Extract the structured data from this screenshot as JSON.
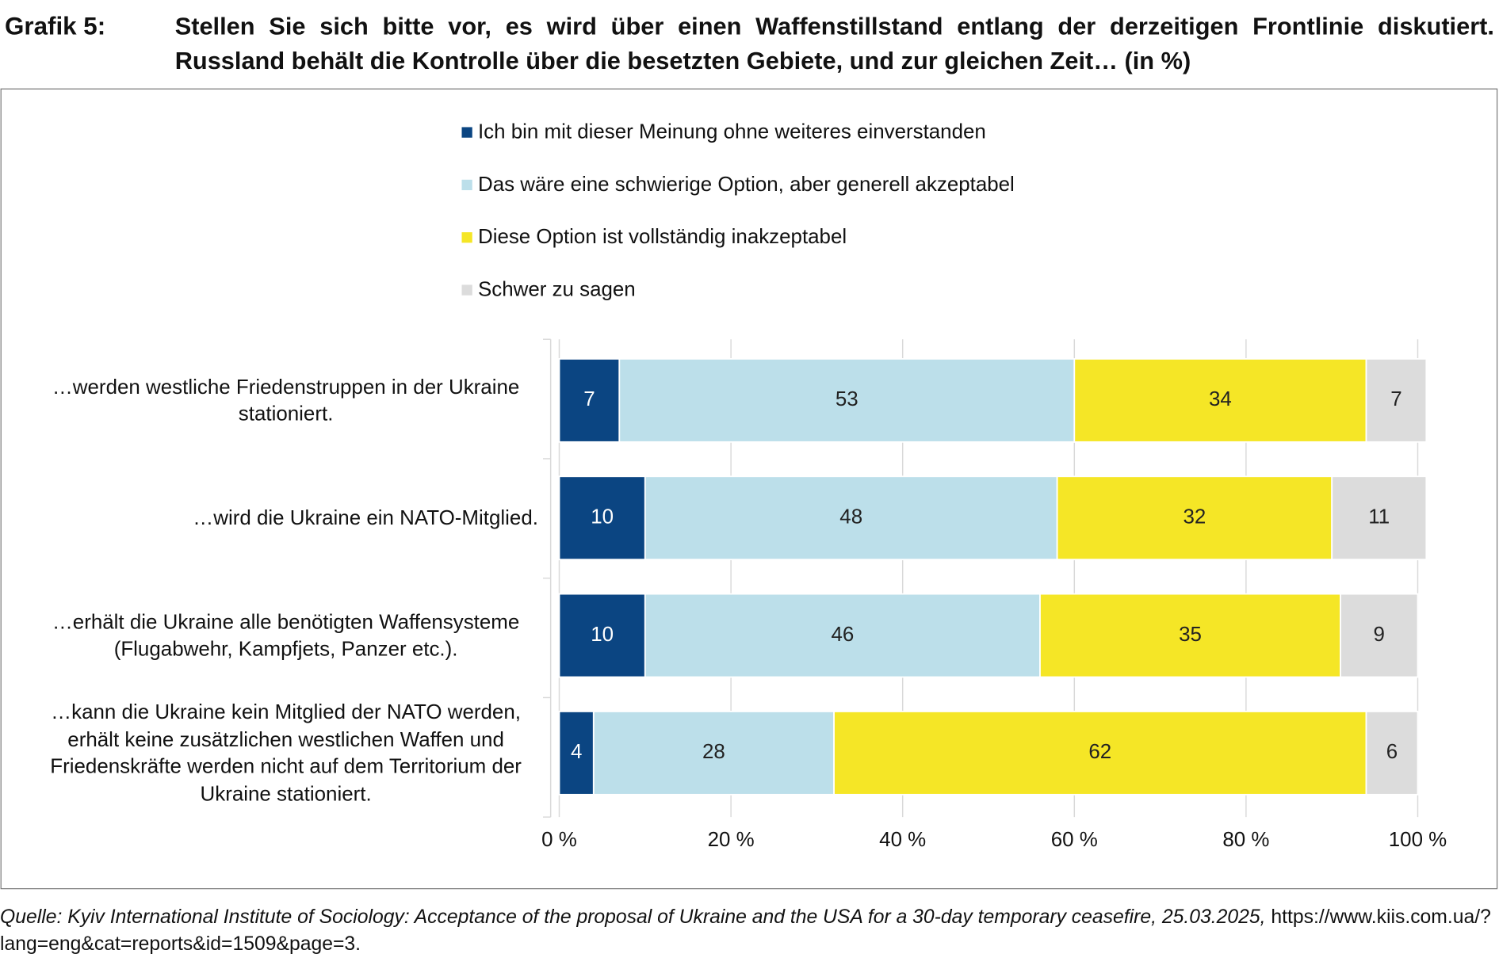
{
  "header": {
    "label": "Grafik 5:"
  },
  "chart_data": {
    "type": "stacked_bar_horizontal",
    "title": "Stellen Sie sich bitte vor, es wird über einen Waffenstillstand entlang der derzeitigen Frontlinie diskutiert. Russland behält die Kontrolle über die besetzten Gebiete, und zur gleichen Zeit… (in %)",
    "categories": [
      "…werden westliche Friedenstruppen in der Ukraine stationiert.",
      "…wird die Ukraine ein NATO-Mitglied.",
      "…erhält die Ukraine alle benötigten Waffensysteme (Flugabwehr, Kampfjets, Panzer etc.).",
      "…kann die Ukraine kein Mitglied der NATO werden, erhält keine zusätzlichen westlichen Waffen und Friedenskräfte werden nicht auf dem Territorium der Ukraine stationiert."
    ],
    "series": [
      {
        "name": "Ich bin mit dieser Meinung ohne weiteres einverstanden",
        "color": "#0b4582",
        "values": [
          7,
          10,
          10,
          4
        ]
      },
      {
        "name": "Das wäre eine schwierige Option, aber generell akzeptabel",
        "color": "#bcdfea",
        "values": [
          53,
          48,
          46,
          28
        ]
      },
      {
        "name": "Diese Option ist vollständig inakzeptabel",
        "color": "#f5e626",
        "values": [
          34,
          32,
          35,
          62
        ]
      },
      {
        "name": "Schwer zu sagen",
        "color": "#dcdcdc",
        "values": [
          7,
          11,
          9,
          6
        ]
      }
    ],
    "xlim": [
      0,
      100
    ],
    "xticks": [
      {
        "value": 0,
        "label": "0 %"
      },
      {
        "value": 20,
        "label": "20 %"
      },
      {
        "value": 40,
        "label": "40 %"
      },
      {
        "value": 60,
        "label": "60 %"
      },
      {
        "value": 80,
        "label": "80 %"
      },
      {
        "value": 100,
        "label": "100 %"
      }
    ],
    "grid": true,
    "legend": "top"
  },
  "footer": {
    "source": "Quelle: Kyiv International Institute of Sociology: Acceptance of the proposal of Ukraine and the USA for a 30-day temporary ceasefire, 25.03.2025,",
    "url": "https://www.kiis.com.ua/?lang=eng&cat=reports&id=1509&page=3."
  }
}
